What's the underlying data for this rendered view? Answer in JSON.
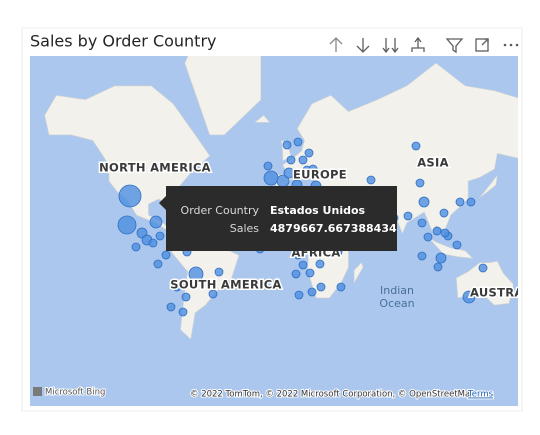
{
  "header": {
    "title": "Sales by Order Country"
  },
  "map": {
    "labels": [
      "NORTH AMERICA",
      "EUROPE",
      "ASIA",
      "AFRICA",
      "SOUTH AMERICA",
      "AUSTRALIA"
    ],
    "ocean_label": [
      "Indian",
      "Ocean"
    ],
    "logo": "Microsoft Bing",
    "attribution": "© 2022 TomTom, © 2022 Microsoft Corporation, © OpenStreetMap",
    "terms": "Terms"
  },
  "tooltip": {
    "rows": [
      {
        "field": "Order Country",
        "value": "Estados Unidos"
      },
      {
        "field": "Sales",
        "value": "4879667.667388434"
      }
    ]
  }
}
